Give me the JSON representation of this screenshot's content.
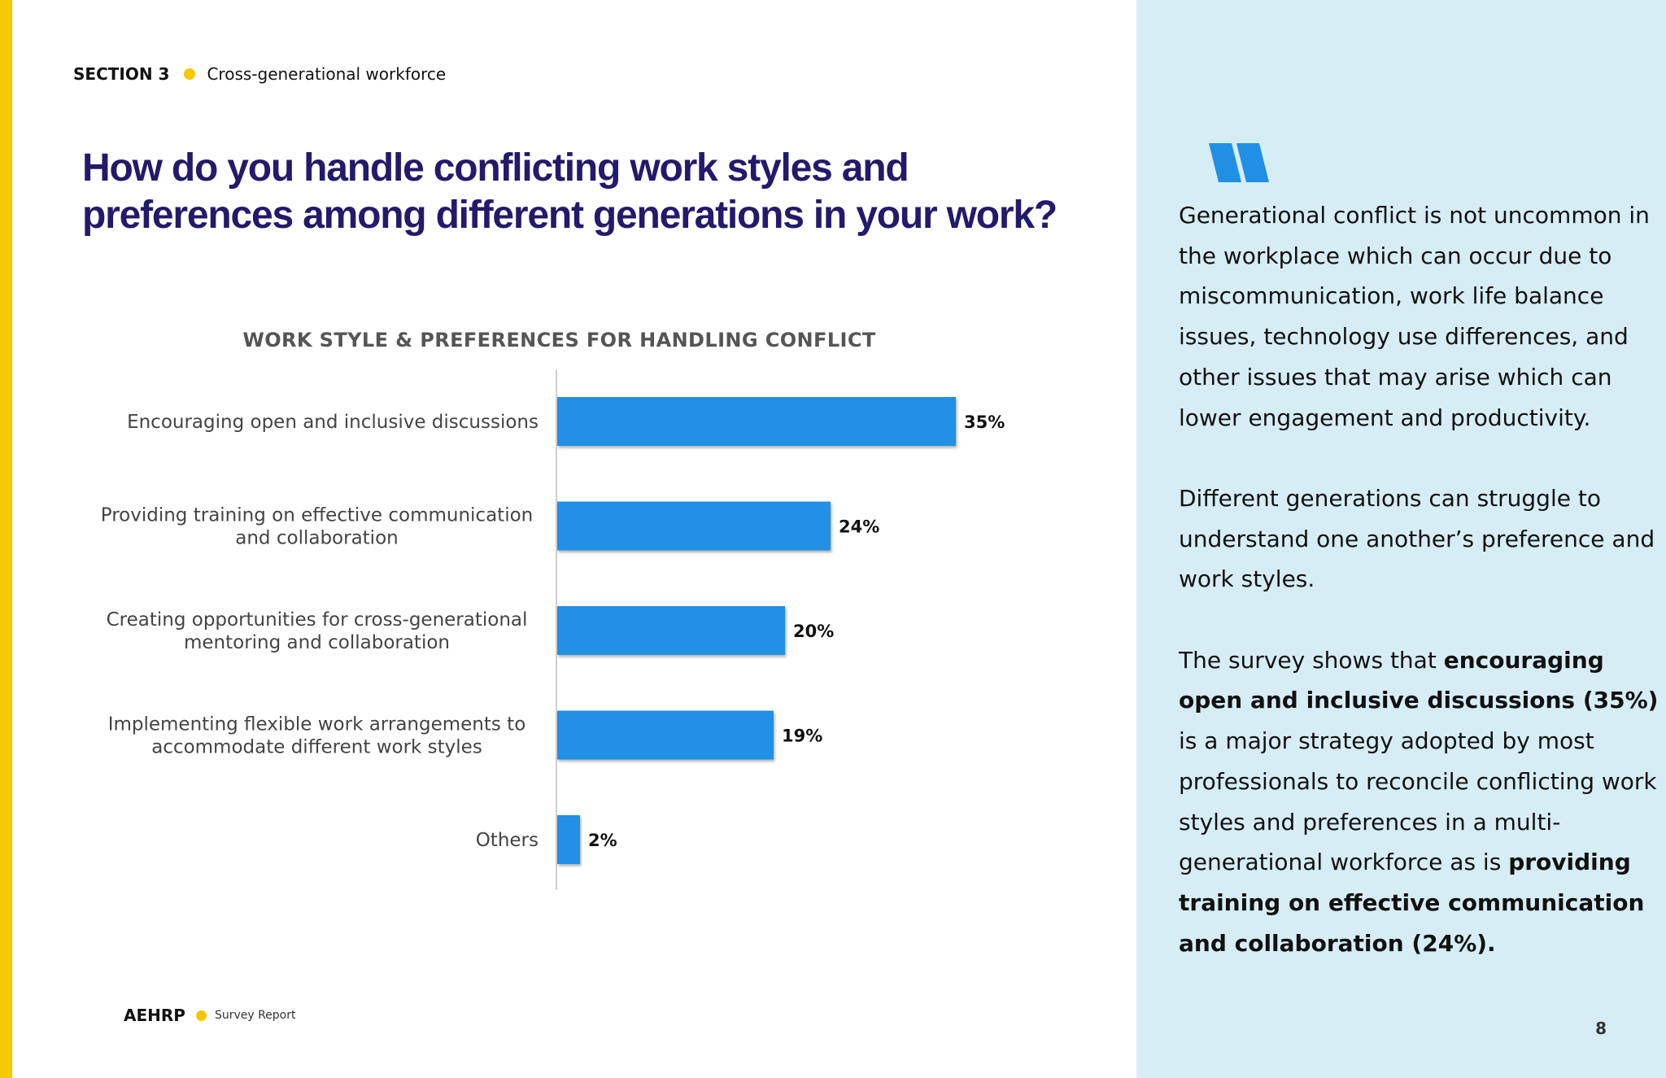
{
  "header": {
    "section_label": "SECTION 3",
    "section_title": "Cross-generational workforce"
  },
  "question": {
    "line1": "How do you handle conflicting work styles and",
    "line2": "preferences among different generations in your work?"
  },
  "chart_data": {
    "type": "bar",
    "orientation": "horizontal",
    "title": "WORK STYLE & PREFERENCES FOR HANDLING CONFLICT",
    "categories": [
      [
        "Encouraging open and inclusive discussions"
      ],
      [
        "Providing training on effective communication",
        "and collaboration"
      ],
      [
        "Creating opportunities for cross-generational",
        "mentoring and collaboration"
      ],
      [
        "Implementing flexible work arrangements to",
        "accommodate different work styles"
      ],
      [
        "Others"
      ]
    ],
    "values": [
      35,
      24,
      20,
      19,
      2
    ],
    "value_labels": [
      "35%",
      "24%",
      "20%",
      "19%",
      "2%"
    ],
    "unit": "%",
    "bar_color": "#2090e5",
    "grid": false,
    "legend": "none"
  },
  "commentary": {
    "p1": "Generational conflict is not uncommon in the workplace which can occur due to miscommunication, work life balance issues, technology use differences, and other issues that may arise which can lower engagement and productivity.",
    "p2": "Different generations can struggle to understand one another’s preference and work styles.",
    "p3_a": "The survey shows that ",
    "p3_b": "encouraging open and inclusive discussions (35%)",
    "p3_c": " is a major strategy adopted by most professionals  to reconcile conflicting work styles and preferences in a multi-generational workforce as is ",
    "p3_d": "providing training on effective communication and collaboration (24%)."
  },
  "footer": {
    "brand": "AEHRP",
    "subtitle": "Survey Report"
  },
  "page_number": "8",
  "icons": {
    "quote": "quote-icon",
    "bullet": "yellow-dot"
  },
  "colors": {
    "accent_yellow": "#f5c800",
    "title_navy": "#231a6b",
    "panel_bg": "#d6edf6",
    "bar_blue": "#2090e5",
    "quote_blue": "#2090e5"
  }
}
